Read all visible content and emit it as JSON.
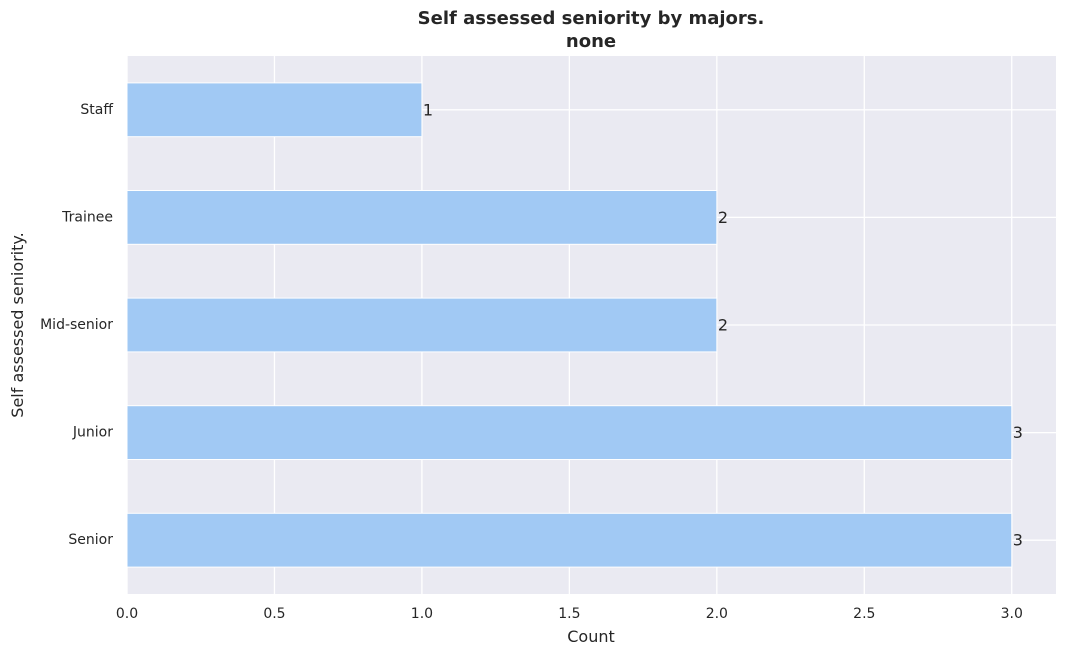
{
  "chart_data": {
    "type": "bar",
    "orientation": "horizontal",
    "title": "Self assessed seniority by majors.",
    "subtitle": "none",
    "xlabel": "Count",
    "ylabel": "Self assessed seniority.",
    "categories": [
      "Staff",
      "Trainee",
      "Mid-senior",
      "Junior",
      "Senior"
    ],
    "values": [
      1,
      2,
      2,
      3,
      3
    ],
    "data_labels": [
      "1",
      "2",
      "2",
      "3",
      "3"
    ],
    "xlim": [
      0,
      3.15
    ],
    "xticks": [
      0.0,
      0.5,
      1.0,
      1.5,
      2.0,
      2.5,
      3.0
    ],
    "xtick_labels": [
      "0.0",
      "0.5",
      "1.0",
      "1.5",
      "2.0",
      "2.5",
      "3.0"
    ],
    "grid": true,
    "bar_color": "#a1c9f4",
    "background_color": "#eaeaf2"
  }
}
